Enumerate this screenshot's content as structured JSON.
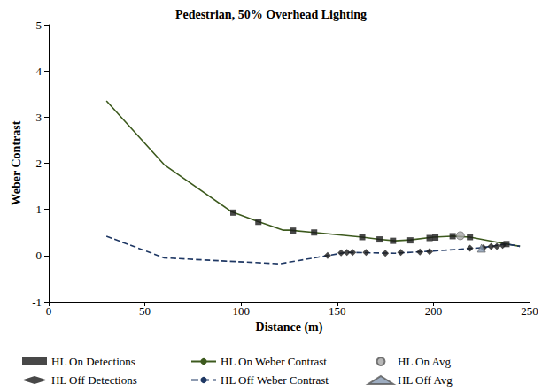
{
  "chart_data": {
    "type": "line",
    "title": "Pedestrian, 50% Overhead Lighting",
    "x_label": "Distance (m)",
    "y_label": "Weber Contrast",
    "xlim": [
      0,
      250
    ],
    "xticks": [
      0,
      50,
      100,
      150,
      200,
      250
    ],
    "ylim": [
      -1,
      5
    ],
    "yticks": [
      -1,
      0,
      1,
      2,
      3,
      4,
      5
    ],
    "grid": false,
    "legend": "bottom",
    "series": [
      {
        "name": "HL On Detections",
        "type": "scatter",
        "marker": "square",
        "color": "#1a1a1a",
        "x": [
          96,
          109,
          127,
          138,
          163,
          172,
          179,
          188,
          198,
          201,
          210,
          219,
          238
        ],
        "values": [
          0.93,
          0.73,
          0.54,
          0.5,
          0.4,
          0.35,
          0.32,
          0.33,
          0.38,
          0.39,
          0.42,
          0.4,
          0.25
        ]
      },
      {
        "name": "HL Off Detections",
        "type": "scatter",
        "marker": "diamond",
        "color": "#1a1a1a",
        "x": [
          145,
          152,
          155,
          158,
          165,
          175,
          183,
          193,
          198,
          219,
          226,
          230,
          233,
          236
        ],
        "values": [
          0.0,
          0.06,
          0.07,
          0.07,
          0.07,
          0.05,
          0.07,
          0.08,
          0.09,
          0.16,
          0.17,
          0.2,
          0.2,
          0.22
        ]
      },
      {
        "name": "HL On Weber Contrast",
        "type": "line",
        "line_style": "solid",
        "marker": "none",
        "color": "#3d5a1e",
        "x": [
          30,
          60,
          95,
          108,
          122,
          125,
          138,
          163,
          172,
          180,
          188,
          200,
          210,
          219,
          238,
          245
        ],
        "values": [
          3.35,
          1.97,
          0.95,
          0.75,
          0.55,
          0.55,
          0.5,
          0.4,
          0.35,
          0.32,
          0.34,
          0.4,
          0.42,
          0.4,
          0.25,
          0.2
        ]
      },
      {
        "name": "HL Off Weber Contrast",
        "type": "line",
        "line_style": "dashed",
        "marker": "none",
        "color": "#1f3864",
        "x": [
          30,
          60,
          92,
          120,
          145,
          155,
          180,
          200,
          225,
          238,
          245
        ],
        "values": [
          0.42,
          -0.05,
          -0.12,
          -0.18,
          0.0,
          0.07,
          0.05,
          0.1,
          0.17,
          0.25,
          0.2
        ]
      },
      {
        "name": "HL On Avg",
        "type": "scatter",
        "marker": "circle",
        "color": "#a6a6a6",
        "x": [
          214
        ],
        "values": [
          0.43
        ]
      },
      {
        "name": "HL Off Avg",
        "type": "scatter",
        "marker": "triangle",
        "color": "#8497b0",
        "x": [
          225
        ],
        "values": [
          0.16
        ]
      }
    ]
  }
}
